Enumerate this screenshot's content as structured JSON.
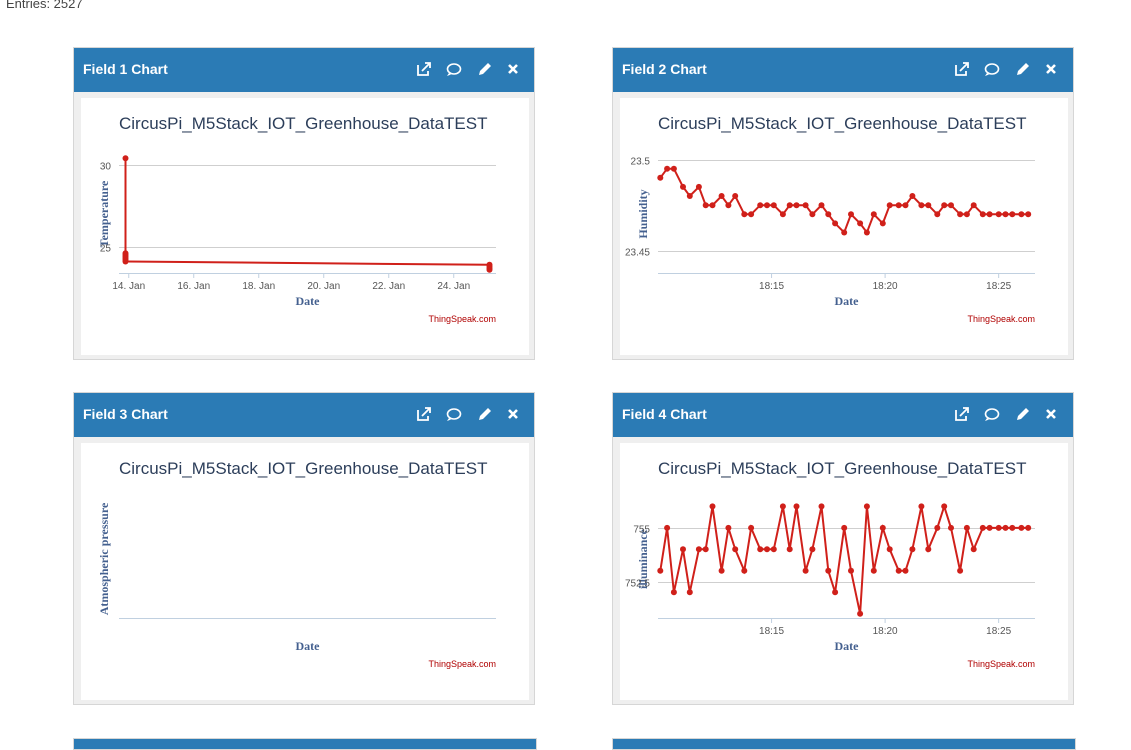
{
  "entries_text": "Entries: 2527",
  "panels": [
    {
      "title": "Field 1 Chart"
    },
    {
      "title": "Field 2 Chart"
    },
    {
      "title": "Field 3 Chart"
    },
    {
      "title": "Field 4 Chart"
    }
  ],
  "colors": {
    "header": "#2b7bb5",
    "series": "#d0201a",
    "axis_text": "#44608f",
    "credit": "#b00000"
  },
  "icons": [
    "external-link-icon",
    "comment-icon",
    "pencil-icon",
    "close-icon"
  ],
  "chart_data": [
    {
      "type": "line",
      "title": "CircusPi_M5Stack_IOT_Greenhouse_DataTEST",
      "xlabel": "Date",
      "ylabel": "Temperature",
      "xlim": [
        13.7,
        25.3
      ],
      "ylim": [
        23.4,
        30.6
      ],
      "yticks": [
        25,
        30
      ],
      "xticks": [
        {
          "v": 14,
          "label": "14. Jan"
        },
        {
          "v": 16,
          "label": "16. Jan"
        },
        {
          "v": 18,
          "label": "18. Jan"
        },
        {
          "v": 20,
          "label": "20. Jan"
        },
        {
          "v": 22,
          "label": "22. Jan"
        },
        {
          "v": 24,
          "label": "24. Jan"
        }
      ],
      "grid": true,
      "credit": "ThingSpeak.com",
      "series": [
        {
          "x": [
            13.9,
            13.9,
            13.9,
            13.9,
            13.9,
            13.9,
            13.9,
            25.1,
            25.1,
            25.1,
            25.1
          ],
          "y": [
            30.4,
            24.6,
            24.5,
            24.4,
            24.3,
            24.2,
            24.1,
            23.9,
            23.8,
            23.7,
            23.6
          ]
        }
      ]
    },
    {
      "type": "line",
      "title": "CircusPi_M5Stack_IOT_Greenhouse_DataTEST",
      "xlabel": "Date",
      "ylabel": "Humidity",
      "xlim": [
        1090,
        1106.6
      ],
      "ylim": [
        23.4378,
        23.5025
      ],
      "yticks": [
        {
          "v": 23.45,
          "label": "23.45"
        },
        {
          "v": 23.5,
          "label": "23.5"
        }
      ],
      "xticks": [
        {
          "v": 1095,
          "label": "18:15"
        },
        {
          "v": 1100,
          "label": "18:20"
        },
        {
          "v": 1105,
          "label": "18:25"
        }
      ],
      "grid": true,
      "credit": "ThingSpeak.com",
      "series": [
        {
          "x": [
            1090.1,
            1090.4,
            1090.7,
            1091.1,
            1091.4,
            1091.8,
            1092.1,
            1092.4,
            1092.8,
            1093.1,
            1093.4,
            1093.8,
            1094.1,
            1094.5,
            1094.8,
            1095.1,
            1095.5,
            1095.8,
            1096.1,
            1096.5,
            1096.8,
            1097.2,
            1097.5,
            1097.8,
            1098.2,
            1098.5,
            1098.9,
            1099.2,
            1099.5,
            1099.9,
            1100.2,
            1100.6,
            1100.9,
            1101.2,
            1101.6,
            1101.9,
            1102.3,
            1102.6,
            1102.9,
            1103.3,
            1103.6,
            1103.9,
            1104.3,
            1104.6,
            1105.0,
            1105.3,
            1105.6,
            1106.0,
            1106.3
          ],
          "y": [
            23.49,
            23.495,
            23.495,
            23.485,
            23.48,
            23.485,
            23.475,
            23.475,
            23.48,
            23.475,
            23.48,
            23.47,
            23.47,
            23.475,
            23.475,
            23.475,
            23.47,
            23.475,
            23.475,
            23.475,
            23.47,
            23.475,
            23.47,
            23.465,
            23.46,
            23.47,
            23.465,
            23.46,
            23.47,
            23.465,
            23.475,
            23.475,
            23.475,
            23.48,
            23.475,
            23.475,
            23.47,
            23.475,
            23.475,
            23.47,
            23.47,
            23.475,
            23.47,
            23.47,
            23.47,
            23.47,
            23.47,
            23.47,
            23.47
          ]
        }
      ]
    },
    {
      "type": "line",
      "title": "CircusPi_M5Stack_IOT_Greenhouse_DataTEST",
      "xlabel": "Date",
      "ylabel": "Atmospheric pressure",
      "grid": false,
      "credit": "ThingSpeak.com",
      "series": []
    },
    {
      "type": "line",
      "title": "CircusPi_M5Stack_IOT_Greenhouse_DataTEST",
      "xlabel": "Date",
      "ylabel": "illuminance",
      "xlim": [
        1090,
        1106.6
      ],
      "ylim": [
        750.8,
        756.3
      ],
      "yticks": [
        {
          "v": 752.5,
          "label": "752.5"
        },
        {
          "v": 755,
          "label": "755"
        }
      ],
      "xticks": [
        {
          "v": 1095,
          "label": "18:15"
        },
        {
          "v": 1100,
          "label": "18:20"
        },
        {
          "v": 1105,
          "label": "18:25"
        }
      ],
      "grid": true,
      "credit": "ThingSpeak.com",
      "series": [
        {
          "x": [
            1090.1,
            1090.4,
            1090.7,
            1091.1,
            1091.4,
            1091.8,
            1092.1,
            1092.4,
            1092.8,
            1093.1,
            1093.4,
            1093.8,
            1094.1,
            1094.5,
            1094.8,
            1095.1,
            1095.5,
            1095.8,
            1096.1,
            1096.5,
            1096.8,
            1097.2,
            1097.5,
            1097.8,
            1098.2,
            1098.5,
            1098.9,
            1099.2,
            1099.5,
            1099.9,
            1100.2,
            1100.6,
            1100.9,
            1101.2,
            1101.6,
            1101.9,
            1102.3,
            1102.6,
            1102.9,
            1103.3,
            1103.6,
            1103.9,
            1104.3,
            1104.6,
            1105.0,
            1105.3,
            1105.6,
            1106.0,
            1106.3
          ],
          "y": [
            753,
            755,
            752,
            754,
            752,
            754,
            754,
            756,
            753,
            755,
            754,
            753,
            755,
            754,
            754,
            754,
            756,
            754,
            756,
            753,
            754,
            756,
            753,
            752,
            755,
            753,
            751,
            756,
            753,
            755,
            754,
            753,
            753,
            754,
            756,
            754,
            755,
            756,
            755,
            753,
            755,
            754,
            755,
            755,
            755,
            755,
            755,
            755,
            755
          ]
        }
      ]
    }
  ]
}
